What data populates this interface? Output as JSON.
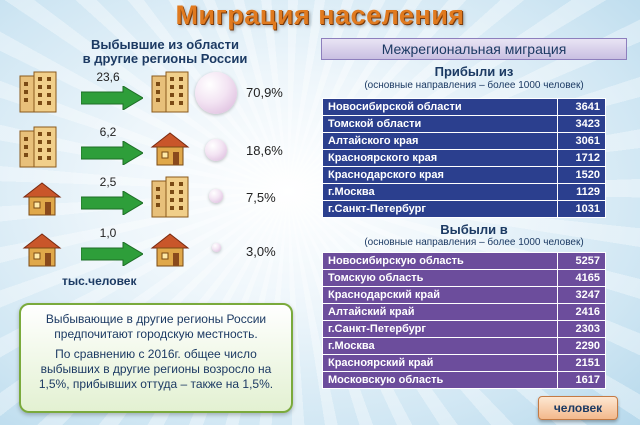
{
  "title": "Миграция населения",
  "left": {
    "subtitle_line1": "Выбывшие из области",
    "subtitle_line2": "в другие регионы России",
    "flows": [
      {
        "value": "23,6",
        "percent": "70,9%",
        "from_icon": "apartment-building-icon",
        "to_icon": "apartment-building-icon",
        "share": 70.9
      },
      {
        "value": "6,2",
        "percent": "18,6%",
        "from_icon": "apartment-building-icon",
        "to_icon": "village-house-icon",
        "share": 18.6
      },
      {
        "value": "2,5",
        "percent": "7,5%",
        "from_icon": "village-house-icon",
        "to_icon": "apartment-building-icon",
        "share": 7.5
      },
      {
        "value": "1,0",
        "percent": "3,0%",
        "from_icon": "village-house-icon",
        "to_icon": "village-house-icon",
        "share": 3.0
      }
    ],
    "unit": "тыс.человек",
    "info_p1": "Выбывающие в другие регионы России предпочитают городскую местность.",
    "info_p2": "По сравнению с 2016г. общее число выбывших в другие регионы возросло на 1,5%, прибывших оттуда – также на 1,5%."
  },
  "right": {
    "header": "Межрегиональная миграция",
    "arrived": {
      "title": "Прибыли из",
      "subtitle": "(основные направления – более 1000 человек)",
      "rows": [
        {
          "region": "Новосибирской области",
          "value": "3641"
        },
        {
          "region": "Томской области",
          "value": "3423"
        },
        {
          "region": "Алтайского края",
          "value": "3061"
        },
        {
          "region": "Красноярского края",
          "value": "1712"
        },
        {
          "region": "Краснодарского края",
          "value": "1520"
        },
        {
          "region": "г.Москва",
          "value": "1129"
        },
        {
          "region": "г.Санкт-Петербург",
          "value": "1031"
        }
      ]
    },
    "departed": {
      "title": "Выбыли в",
      "subtitle": "(основные направления – более 1000 человек)",
      "rows": [
        {
          "region": "Новосибирскую область",
          "value": "5257"
        },
        {
          "region": "Томскую область",
          "value": "4165"
        },
        {
          "region": "Краснодарский край",
          "value": "3247"
        },
        {
          "region": "Алтайский край",
          "value": "2416"
        },
        {
          "region": "г.Санкт-Петербург",
          "value": "2303"
        },
        {
          "region": "г.Москва",
          "value": "2290"
        },
        {
          "region": "Красноярский край",
          "value": "2151"
        },
        {
          "region": "Московскую область",
          "value": "1617"
        }
      ]
    },
    "button_label": "человек"
  },
  "colors": {
    "title": "#e07a1f",
    "table_arrived": "#2b3f8e",
    "table_departed": "#6c4d9c",
    "arrow": "#2e9e3a"
  }
}
